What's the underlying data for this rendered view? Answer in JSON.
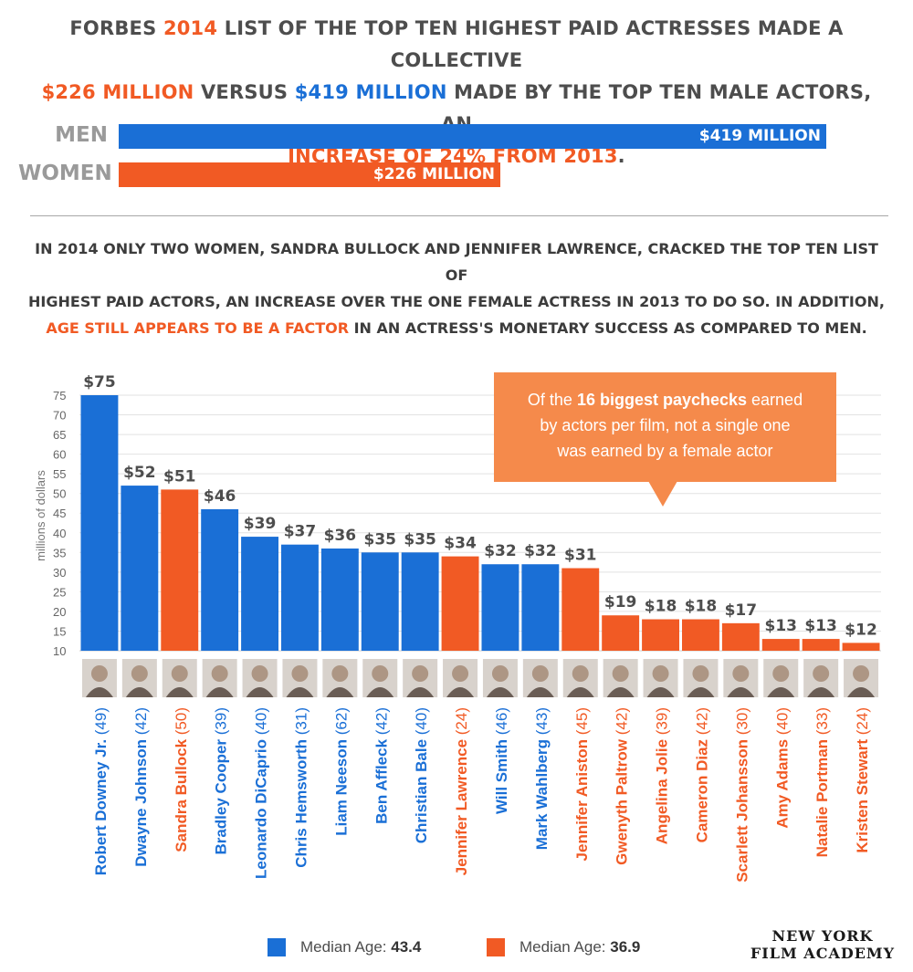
{
  "headline": {
    "l1_a": "FORBES ",
    "l1_b": "2014",
    "l1_c": " LIST OF THE TOP TEN HIGHEST PAID ACTRESSES MADE A COLLECTIVE",
    "l2_a": "$226 MILLION",
    "l2_b": " VERSUS ",
    "l2_c": "$419 MILLION",
    "l2_d": " MADE BY THE TOP TEN MALE ACTORS, AN",
    "l3_a": "INCREASE OF 24% FROM 2013",
    "l3_b": "."
  },
  "comparison": {
    "men_label": "MEN",
    "men_value_label": "$419 MILLION",
    "men_value": 419,
    "women_label": "WOMEN",
    "women_value_label": "$226 MILLION",
    "women_value": 226
  },
  "paragraph": {
    "l1": "IN 2014 ONLY TWO WOMEN, SANDRA BULLOCK AND JENNIFER LAWRENCE, CRACKED THE TOP TEN LIST OF",
    "l2": "HIGHEST PAID ACTORS, AN INCREASE OVER THE ONE FEMALE ACTRESS IN 2013 TO DO SO. IN ADDITION,",
    "l3_a": "AGE STILL APPEARS TO BE A FACTOR",
    "l3_b": " IN AN ACTRESS'S MONETARY SUCCESS AS COMPARED TO MEN."
  },
  "callout": {
    "l1_a": "Of the ",
    "l1_b": "16 biggest paychecks",
    "l1_c": " earned",
    "l2": "by actors per film, not a single one",
    "l3": "was earned by a female actor"
  },
  "colors": {
    "male": "#1a6fd6",
    "female": "#f15a24",
    "text": "#4d4d4d",
    "callout": "#f58a4b"
  },
  "chart_data": {
    "type": "bar",
    "ylabel": "millions of dollars",
    "ylim": [
      10,
      75
    ],
    "yticks": [
      10,
      15,
      20,
      25,
      30,
      35,
      40,
      45,
      50,
      55,
      60,
      65,
      70,
      75
    ],
    "grid": true,
    "categories": [
      "Robert Downey Jr.",
      "Dwayne Johnson",
      "Sandra Bullock",
      "Bradley Cooper",
      "Leonardo DiCaprio",
      "Chris Hemsworth",
      "Liam Neeson",
      "Ben Affleck",
      "Christian Bale",
      "Jennifer Lawrence",
      "Will Smith",
      "Mark Wahlberg",
      "Jennifer Aniston",
      "Gwenyth Paltrow",
      "Angelina Jolie",
      "Cameron Diaz",
      "Scarlett Johansson",
      "Amy Adams",
      "Natalie Portman",
      "Kristen Stewart"
    ],
    "ages": [
      "(49)",
      "(42)",
      "(50)",
      "(39)",
      "(40)",
      "(31)",
      "(62)",
      "(42)",
      "(40)",
      "(24)",
      "(46)",
      "(43)",
      "(45)",
      "(42)",
      "(39)",
      "(42)",
      "(30)",
      "(40)",
      "(33)",
      "(24)"
    ],
    "values": [
      75,
      52,
      51,
      46,
      39,
      37,
      36,
      35,
      35,
      34,
      32,
      32,
      31,
      19,
      18,
      18,
      17,
      13,
      13,
      12
    ],
    "value_labels": [
      "$75",
      "$52",
      "$51",
      "$46",
      "$39",
      "$37",
      "$36",
      "$35",
      "$35",
      "$34",
      "$32",
      "$32",
      "$31",
      "$19",
      "$18",
      "$18",
      "$17",
      "$13",
      "$13",
      "$12"
    ],
    "gender": [
      "male",
      "male",
      "female",
      "male",
      "male",
      "male",
      "male",
      "male",
      "male",
      "female",
      "male",
      "male",
      "female",
      "female",
      "female",
      "female",
      "female",
      "female",
      "female",
      "female"
    ]
  },
  "legend": {
    "male_text": "Median Age: ",
    "male_value": "43.4",
    "female_text": "Median Age: ",
    "female_value": "36.9"
  },
  "logo": {
    "l1": "NEW YORK",
    "l2": "FILM ACADEMY"
  }
}
